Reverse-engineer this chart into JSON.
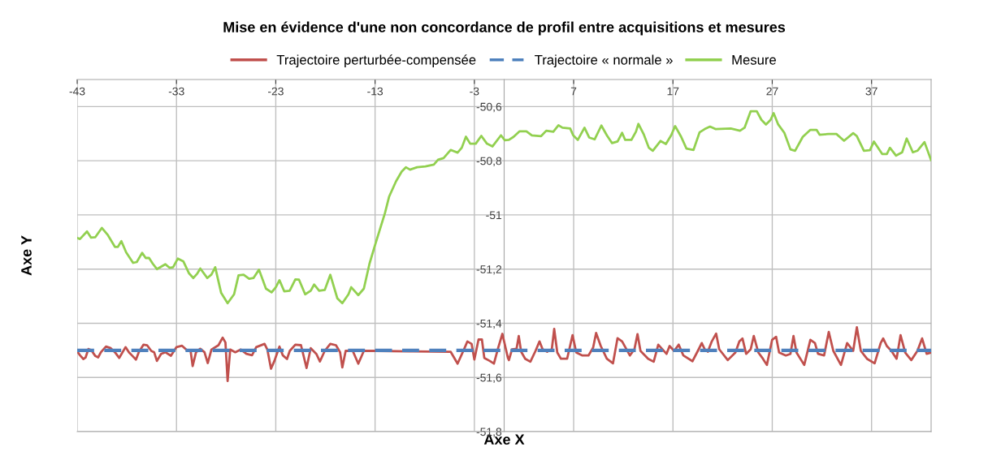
{
  "chart_data": {
    "type": "line",
    "title": "Mise en évidence d'une non concordance de profil entre acquisitions et mesures",
    "xlabel": "Axe X",
    "ylabel": "Axe Y",
    "xlim": [
      -43,
      43
    ],
    "xticks": [
      -43,
      -33,
      -23,
      -13,
      -3,
      7,
      17,
      27,
      37
    ],
    "ylim": [
      -51.8,
      -50.5
    ],
    "yticks": [
      {
        "value": -50.6,
        "label": "-50,6"
      },
      {
        "value": -50.8,
        "label": "-50,8"
      },
      {
        "value": -51,
        "label": "-51"
      },
      {
        "value": -51.2,
        "label": "-51,2"
      },
      {
        "value": -51.4,
        "label": "-51,4"
      },
      {
        "value": -51.6,
        "label": "-51,6"
      },
      {
        "value": -51.8,
        "label": "-51,8"
      }
    ],
    "grid": true,
    "legend": "top",
    "marker": "none",
    "series": [
      {
        "name": "Trajectoire perturbée-compensée",
        "color": "#c0504d",
        "line_style": "solid",
        "x": [
          -43,
          -42.72,
          -42.38,
          -42.15,
          -41.87,
          -41.59,
          -41.17,
          -40.89,
          -40.61,
          -40.1,
          -39.62,
          -39.2,
          -38.77,
          -38.13,
          -37.79,
          -37.5,
          -37.08,
          -36.8,
          -36.32,
          -35.96,
          -35.54,
          -35.25,
          -34.97,
          -34.55,
          -34.13,
          -33.56,
          -33.0,
          -32.44,
          -31.87,
          -31.59,
          -31.37,
          -31.03,
          -30.61,
          -30.18,
          -29.85,
          -29.48,
          -28.77,
          -28.35,
          -28.07,
          -27.85,
          -27.59,
          -27.08,
          -26.52,
          -25.96,
          -25.39,
          -24.97,
          -24.13,
          -23.85,
          -23.48,
          -23.14,
          -22.63,
          -22.3,
          -21.87,
          -21.59,
          -21.03,
          -20.46,
          -19.9,
          -19.48,
          -18.92,
          -18.55,
          -18.07,
          -17.51,
          -16.94,
          -16.52,
          -16.3,
          -15.96,
          -15.25,
          -14.69,
          -14.13,
          -13.0,
          -9.62,
          -5.39,
          -4.69,
          -3.99,
          -3.7,
          -3.28,
          -3.0,
          -2.58,
          -2.24,
          -2.0,
          -1.45,
          -1.03,
          -0.61,
          -0.18,
          0.38,
          0.48,
          0.79,
          1.25,
          1.47,
          1.71,
          2.12,
          2.64,
          3.16,
          3.56,
          3.87,
          4.33,
          4.8,
          5.04,
          5.35,
          5.72,
          6.34,
          6.89,
          7.26,
          7.88,
          8.49,
          8.96,
          9.26,
          9.73,
          10.34,
          10.96,
          11.42,
          11.88,
          12.66,
          13.12,
          13.43,
          13.73,
          14.5,
          15.06,
          15.52,
          15.89,
          16.35,
          16.66,
          17.12,
          17.58,
          18.05,
          18.97,
          19.59,
          19.9,
          20.2,
          20.51,
          20.91,
          21.35,
          21.66,
          22.52,
          23.29,
          23.69,
          24.0,
          24.37,
          24.83,
          25.14,
          25.6,
          26.06,
          26.46,
          26.99,
          27.39,
          27.69,
          28.37,
          28.83,
          29.14,
          29.44,
          30.22,
          30.84,
          31.3,
          31.61,
          32.22,
          32.69,
          33.15,
          33.92,
          34.54,
          35.15,
          35.52,
          35.92,
          36.54,
          37.31,
          37.92,
          38.17,
          38.54,
          39.0,
          39.52,
          39.92,
          40.39,
          41.0,
          41.62,
          42.09,
          42.55,
          43.0
        ],
        "values": [
          -51.504,
          -51.518,
          -51.532,
          -51.526,
          -51.495,
          -51.499,
          -51.521,
          -51.526,
          -51.507,
          -51.486,
          -51.492,
          -51.507,
          -51.528,
          -51.488,
          -51.507,
          -51.518,
          -51.534,
          -51.507,
          -51.479,
          -51.481,
          -51.502,
          -51.507,
          -51.539,
          -51.513,
          -51.507,
          -51.52,
          -51.488,
          -51.483,
          -51.502,
          -51.499,
          -51.558,
          -51.507,
          -51.494,
          -51.507,
          -51.547,
          -51.497,
          -51.481,
          -51.453,
          -51.471,
          -51.613,
          -51.497,
          -51.507,
          -51.497,
          -51.513,
          -51.518,
          -51.488,
          -51.476,
          -51.497,
          -51.568,
          -51.539,
          -51.486,
          -51.518,
          -51.532,
          -51.502,
          -51.479,
          -51.481,
          -51.565,
          -51.492,
          -51.513,
          -51.541,
          -51.502,
          -51.476,
          -51.481,
          -51.507,
          -51.563,
          -51.502,
          -51.502,
          -51.549,
          -51.502,
          -51.502,
          -51.504,
          -51.505,
          -51.549,
          -51.492,
          -51.467,
          -51.476,
          -51.534,
          -51.46,
          -51.46,
          -51.528,
          -51.539,
          -51.549,
          -51.492,
          -51.439,
          -51.528,
          -51.536,
          -51.496,
          -51.494,
          -51.447,
          -51.505,
          -51.531,
          -51.542,
          -51.502,
          -51.467,
          -51.496,
          -51.505,
          -51.496,
          -51.421,
          -51.508,
          -51.531,
          -51.531,
          -51.444,
          -51.508,
          -51.519,
          -51.519,
          -51.49,
          -51.436,
          -51.484,
          -51.531,
          -51.548,
          -51.455,
          -51.467,
          -51.519,
          -51.496,
          -51.44,
          -51.502,
          -51.531,
          -51.542,
          -51.479,
          -51.494,
          -51.513,
          -51.484,
          -51.502,
          -51.479,
          -51.519,
          -51.54,
          -51.496,
          -51.473,
          -51.496,
          -51.505,
          -51.467,
          -51.438,
          -51.496,
          -51.536,
          -51.508,
          -51.467,
          -51.456,
          -51.513,
          -51.496,
          -51.447,
          -51.508,
          -51.531,
          -51.554,
          -51.461,
          -51.45,
          -51.508,
          -51.519,
          -51.513,
          -51.447,
          -51.508,
          -51.554,
          -51.461,
          -51.473,
          -51.513,
          -51.519,
          -51.432,
          -51.502,
          -51.554,
          -51.473,
          -51.502,
          -51.415,
          -51.502,
          -51.531,
          -51.548,
          -51.473,
          -51.456,
          -51.484,
          -51.502,
          -51.531,
          -51.444,
          -51.508,
          -51.536,
          -51.502,
          -51.456,
          -51.513,
          -51.508
        ]
      },
      {
        "name": "Trajectoire « normale »",
        "color": "#4f81bd",
        "line_style": "dashed",
        "x": [
          -43,
          43
        ],
        "values": [
          -51.5,
          -51.5
        ]
      },
      {
        "name": "Mesure",
        "color": "#92d050",
        "line_style": "solid",
        "x": [
          -43,
          -42.72,
          -42.01,
          -41.6,
          -41.17,
          -40.52,
          -39.9,
          -39.2,
          -38.9,
          -38.55,
          -38.07,
          -37.37,
          -37.0,
          -36.46,
          -36.1,
          -35.76,
          -35.39,
          -34.97,
          -34.13,
          -33.7,
          -33.34,
          -32.86,
          -32.3,
          -31.73,
          -31.3,
          -30.9,
          -30.6,
          -29.9,
          -29.48,
          -29.1,
          -28.5,
          -27.85,
          -27.2,
          -26.75,
          -26.24,
          -25.68,
          -25.25,
          -24.69,
          -23.99,
          -23.42,
          -23.0,
          -22.63,
          -22.15,
          -21.6,
          -21.03,
          -20.66,
          -20.04,
          -19.48,
          -19.14,
          -18.63,
          -18.07,
          -17.51,
          -16.8,
          -16.3,
          -15.68,
          -15.4,
          -14.69,
          -14.13,
          -13.56,
          -13.06,
          -12.58,
          -12.01,
          -11.59,
          -10.89,
          -10.32,
          -9.9,
          -9.48,
          -8.77,
          -7.93,
          -7.08,
          -6.66,
          -6.1,
          -5.39,
          -4.69,
          -4.27,
          -3.85,
          -3.42,
          -2.86,
          -2.3,
          -1.73,
          -1.17,
          -0.32,
          0.07,
          0.48,
          0.94,
          1.56,
          2.24,
          2.79,
          3.72,
          4.24,
          4.95,
          5.47,
          5.87,
          6.65,
          6.95,
          7.42,
          8.09,
          8.56,
          9.11,
          9.79,
          10.34,
          10.87,
          11.42,
          11.88,
          12.19,
          12.81,
          13.27,
          13.52,
          14.04,
          14.57,
          14.97,
          15.74,
          16.29,
          16.82,
          17.22,
          17.83,
          18.36,
          19.07,
          19.68,
          20.2,
          20.73,
          21.28,
          22.82,
          23.75,
          24.21,
          24.83,
          25.44,
          25.91,
          26.37,
          26.83,
          27.14,
          27.6,
          28.22,
          28.83,
          29.3,
          30.07,
          30.84,
          31.46,
          31.77,
          32.69,
          33.46,
          34.23,
          35.15,
          35.52,
          36.23,
          36.84,
          37.24,
          38.07,
          38.54,
          38.85,
          39.47,
          40.08,
          40.54,
          41.16,
          41.62,
          42.33,
          43.0
        ],
        "values": [
          -51.085,
          -51.089,
          -51.061,
          -51.084,
          -51.082,
          -51.048,
          -51.075,
          -51.118,
          -51.118,
          -51.097,
          -51.138,
          -51.177,
          -51.174,
          -51.14,
          -51.159,
          -51.159,
          -51.18,
          -51.2,
          -51.182,
          -51.195,
          -51.193,
          -51.161,
          -51.172,
          -51.216,
          -51.233,
          -51.216,
          -51.198,
          -51.233,
          -51.22,
          -51.193,
          -51.288,
          -51.326,
          -51.293,
          -51.223,
          -51.221,
          -51.236,
          -51.233,
          -51.202,
          -51.272,
          -51.286,
          -51.267,
          -51.241,
          -51.282,
          -51.28,
          -51.238,
          -51.239,
          -51.293,
          -51.28,
          -51.257,
          -51.28,
          -51.277,
          -51.221,
          -51.308,
          -51.326,
          -51.293,
          -51.267,
          -51.296,
          -51.272,
          -51.18,
          -51.118,
          -51.061,
          -50.994,
          -50.933,
          -50.876,
          -50.84,
          -50.824,
          -50.833,
          -50.824,
          -50.821,
          -50.814,
          -50.796,
          -50.79,
          -50.76,
          -50.77,
          -50.752,
          -50.711,
          -50.737,
          -50.737,
          -50.708,
          -50.737,
          -50.747,
          -50.706,
          -50.724,
          -50.723,
          -50.712,
          -50.691,
          -50.691,
          -50.706,
          -50.709,
          -50.689,
          -50.693,
          -50.669,
          -50.678,
          -50.681,
          -50.706,
          -50.723,
          -50.678,
          -50.714,
          -50.721,
          -50.67,
          -50.706,
          -50.735,
          -50.729,
          -50.697,
          -50.723,
          -50.723,
          -50.693,
          -50.664,
          -50.701,
          -50.752,
          -50.763,
          -50.727,
          -50.738,
          -50.706,
          -50.672,
          -50.712,
          -50.755,
          -50.76,
          -50.695,
          -50.683,
          -50.674,
          -50.683,
          -50.681,
          -50.689,
          -50.678,
          -50.617,
          -50.617,
          -50.649,
          -50.666,
          -50.649,
          -50.624,
          -50.666,
          -50.697,
          -50.758,
          -50.763,
          -50.712,
          -50.686,
          -50.686,
          -50.704,
          -50.701,
          -50.701,
          -50.726,
          -50.698,
          -50.709,
          -50.763,
          -50.761,
          -50.729,
          -50.775,
          -50.775,
          -50.752,
          -50.781,
          -50.769,
          -50.718,
          -50.769,
          -50.763,
          -50.731,
          -50.798
        ]
      }
    ]
  }
}
